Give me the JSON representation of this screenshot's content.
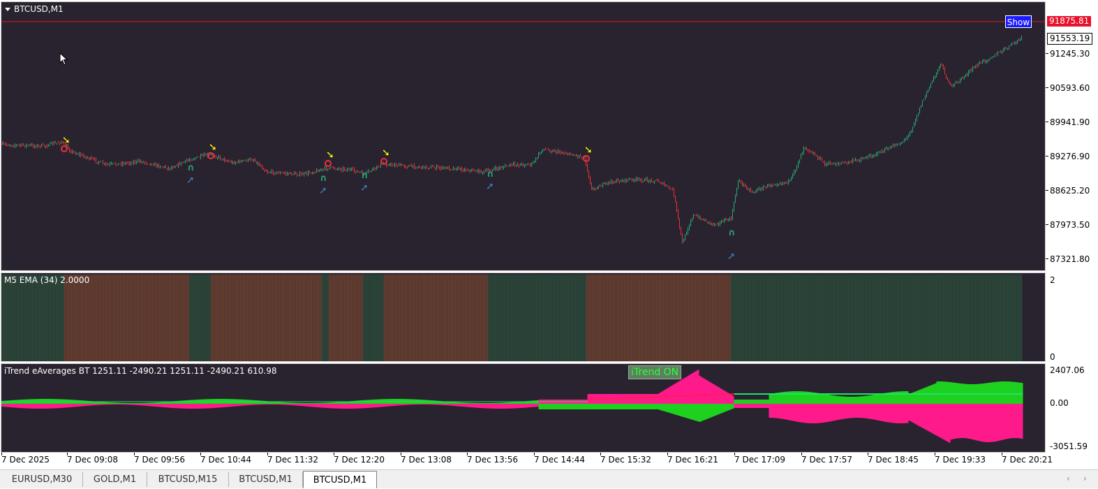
{
  "main_pane": {
    "title": "BTCUSD,M1",
    "show_button": "Show",
    "ask_price": "91875.81",
    "bid_price": "91553.19",
    "price_labels": [
      "91245.30",
      "90593.60",
      "89941.90",
      "89276.90",
      "88625.20",
      "87973.50",
      "87321.80"
    ],
    "colors": {
      "background": "#29232f",
      "bull": "#27a877",
      "bear": "#e8323c",
      "ask_line": "#e8102a",
      "sell_arrow": "#ffff00",
      "buy_arrow": "#3d7fbf",
      "buy_marker": "#27a877",
      "sell_marker": "#e8323c"
    }
  },
  "ema_pane": {
    "title": "M5 EMA (34) 2.0000",
    "axis_labels": [
      "2",
      "0"
    ],
    "colors": {
      "up": "#2b4a3a",
      "down": "#6b4030"
    }
  },
  "itrend_pane": {
    "title": "iTrend eAverages BT 1251.11 -2490.21 1251.11 -2490.21 610.98",
    "status_label": "iTrend ON",
    "axis_labels": [
      "2407.06",
      "0.00",
      "-3051.59"
    ],
    "colors": {
      "bull": "#1fd11f",
      "bear": "#ff1a8c",
      "signal": "#b0b0b0",
      "level": "#20e070"
    }
  },
  "time_axis": {
    "labels": [
      "7 Dec 2025",
      "7 Dec 09:08",
      "7 Dec 09:56",
      "7 Dec 10:44",
      "7 Dec 11:32",
      "7 Dec 12:20",
      "7 Dec 13:08",
      "7 Dec 13:56",
      "7 Dec 14:44",
      "7 Dec 15:32",
      "7 Dec 16:21",
      "7 Dec 17:09",
      "7 Dec 17:57",
      "7 Dec 18:45",
      "7 Dec 19:33",
      "7 Dec 20:21"
    ]
  },
  "tabs": [
    {
      "label": "EURUSD,M30",
      "active": false
    },
    {
      "label": "GOLD,M1",
      "active": false
    },
    {
      "label": "BTCUSD,M15",
      "active": false
    },
    {
      "label": "BTCUSD,M1",
      "active": false
    },
    {
      "label": "BTCUSD,M1",
      "active": true
    }
  ],
  "tab_scroll": {
    "left": "‹",
    "right": "›"
  }
}
